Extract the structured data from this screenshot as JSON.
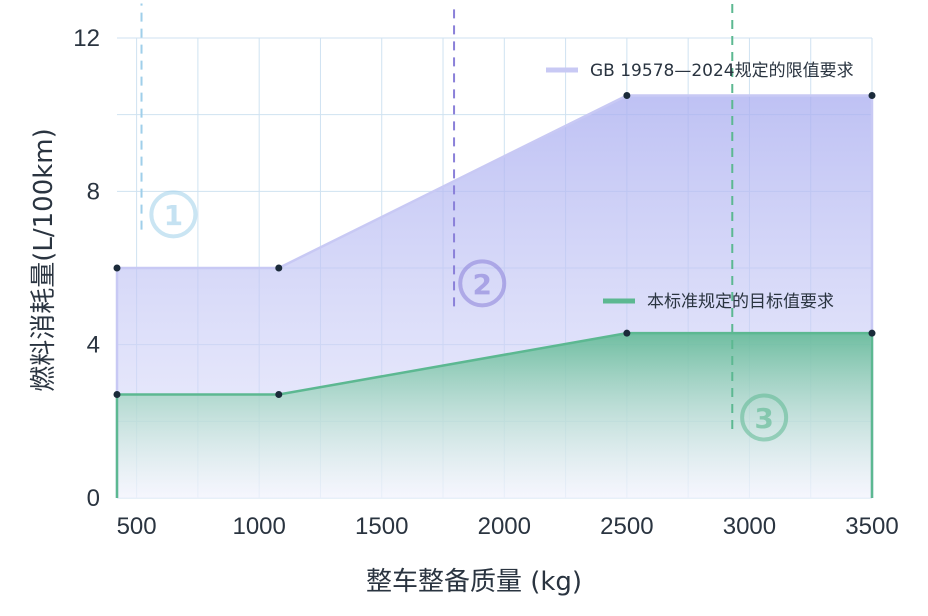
{
  "chart_data": {
    "type": "area",
    "xlabel": "整车整备质量 (kg)",
    "ylabel": "燃料消耗量(L/100km)",
    "xlim": [
      420,
      3500
    ],
    "ylim": [
      0,
      12
    ],
    "x_ticks": [
      500,
      1000,
      1500,
      2000,
      2500,
      3000,
      3500
    ],
    "y_ticks": [
      0,
      4,
      8,
      12
    ],
    "grid": true,
    "legend_position": "top-right",
    "series": [
      {
        "name": "GB 19578—2024规定的限值要求",
        "color": "#c8c9f4",
        "fill": "#b4b8f2",
        "x": [
          420,
          1080,
          2500,
          3500
        ],
        "y": [
          6.0,
          6.0,
          10.5,
          10.5
        ]
      },
      {
        "name": "本标准规定的目标值要求",
        "color": "#5cb891",
        "fill": "#5cb891",
        "x": [
          420,
          1080,
          2500,
          3500
        ],
        "y": [
          2.7,
          2.7,
          4.3,
          4.3
        ]
      }
    ],
    "annotations": [
      {
        "label": "①",
        "x": 650,
        "y": 7.4,
        "line_x": 520,
        "line_y": [
          7.0,
          12.9
        ],
        "color": "#9fcfea"
      },
      {
        "label": "②",
        "x": 1910,
        "y": 5.6,
        "line_x": 1795,
        "line_y": [
          5.0,
          12.9
        ],
        "color": "#8a80d9"
      },
      {
        "label": "③",
        "x": 3060,
        "y": 2.1,
        "line_x": 2930,
        "line_y": [
          1.8,
          12.9
        ],
        "color": "#5cb891"
      }
    ]
  }
}
